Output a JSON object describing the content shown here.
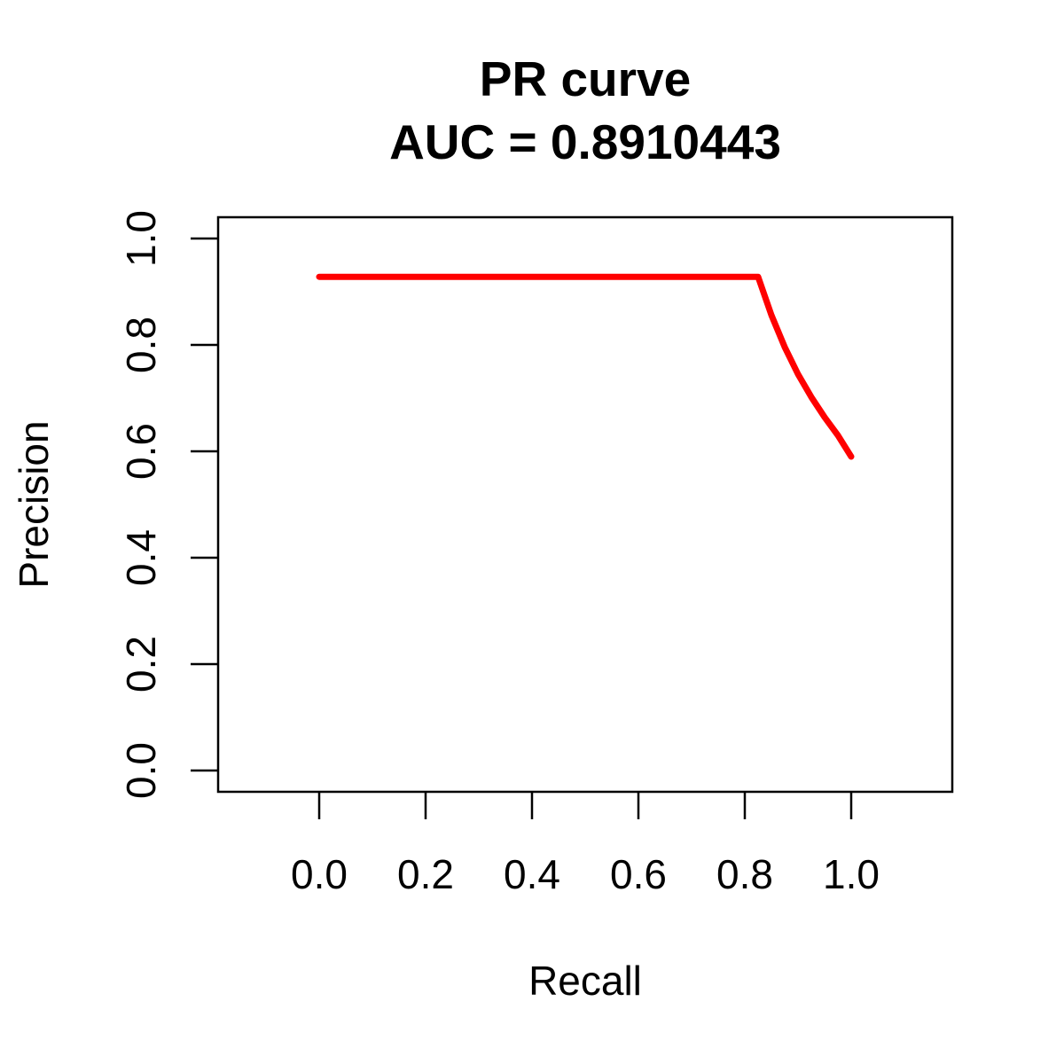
{
  "chart_data": {
    "type": "line",
    "title": "PR curve",
    "subtitle": "AUC = 0.8910443",
    "xlabel": "Recall",
    "ylabel": "Precision",
    "xlim": [
      -0.19,
      1.19
    ],
    "ylim": [
      -0.04,
      1.04
    ],
    "xticks": [
      "0.0",
      "0.2",
      "0.4",
      "0.6",
      "0.8",
      "1.0"
    ],
    "yticks": [
      "0.0",
      "0.2",
      "0.4",
      "0.6",
      "0.8",
      "1.0"
    ],
    "grid": false,
    "series": [
      {
        "color": "#ff0000",
        "x": [
          0.0,
          0.1,
          0.2,
          0.3,
          0.4,
          0.5,
          0.6,
          0.7,
          0.8,
          0.825,
          0.85,
          0.875,
          0.9,
          0.925,
          0.95,
          0.975,
          1.0
        ],
        "y": [
          0.928,
          0.928,
          0.928,
          0.928,
          0.928,
          0.928,
          0.928,
          0.928,
          0.928,
          0.928,
          0.856,
          0.796,
          0.745,
          0.702,
          0.664,
          0.63,
          0.59
        ]
      }
    ]
  }
}
